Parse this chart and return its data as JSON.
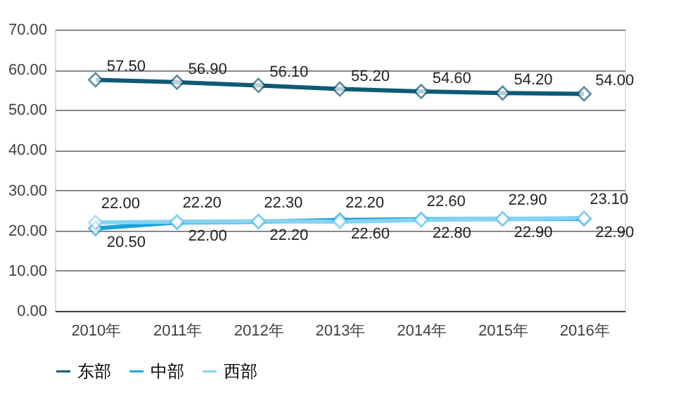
{
  "chart_data": {
    "type": "line",
    "categories": [
      "2010年",
      "2011年",
      "2012年",
      "2013年",
      "2014年",
      "2015年",
      "2016年"
    ],
    "series": [
      {
        "name": "东部",
        "color": "#0e5a74",
        "values": [
          57.5,
          56.9,
          56.1,
          55.2,
          54.6,
          54.2,
          54.0
        ],
        "value_labels": [
          "57.50",
          "56.90",
          "56.10",
          "55.20",
          "54.60",
          "54.20",
          "54.00"
        ]
      },
      {
        "name": "中部",
        "color": "#1ba1d9",
        "values": [
          20.5,
          22.0,
          22.2,
          22.6,
          22.8,
          22.9,
          22.9
        ],
        "value_labels": [
          "20.50",
          "22.00",
          "22.20",
          "22.60",
          "22.80",
          "22.90",
          "22.90"
        ]
      },
      {
        "name": "西部",
        "color": "#86d3f2",
        "values": [
          22.0,
          22.2,
          22.3,
          22.2,
          22.6,
          22.9,
          23.1
        ],
        "value_labels": [
          "22.00",
          "22.20",
          "22.30",
          "22.20",
          "22.60",
          "22.90",
          "23.10"
        ]
      }
    ],
    "ylim": [
      0,
      70
    ],
    "yticks": [
      {
        "value": 0,
        "label": "0.00"
      },
      {
        "value": 10,
        "label": "10.00"
      },
      {
        "value": 20,
        "label": "20.00"
      },
      {
        "value": 30,
        "label": "30.00"
      },
      {
        "value": 40,
        "label": "40.00"
      },
      {
        "value": 50,
        "label": "50.00"
      },
      {
        "value": 60,
        "label": "60.00"
      },
      {
        "value": 70,
        "label": "70.00"
      }
    ],
    "grid": "y",
    "legend": "bottom",
    "marker": "diamond",
    "line_style": "solid"
  }
}
